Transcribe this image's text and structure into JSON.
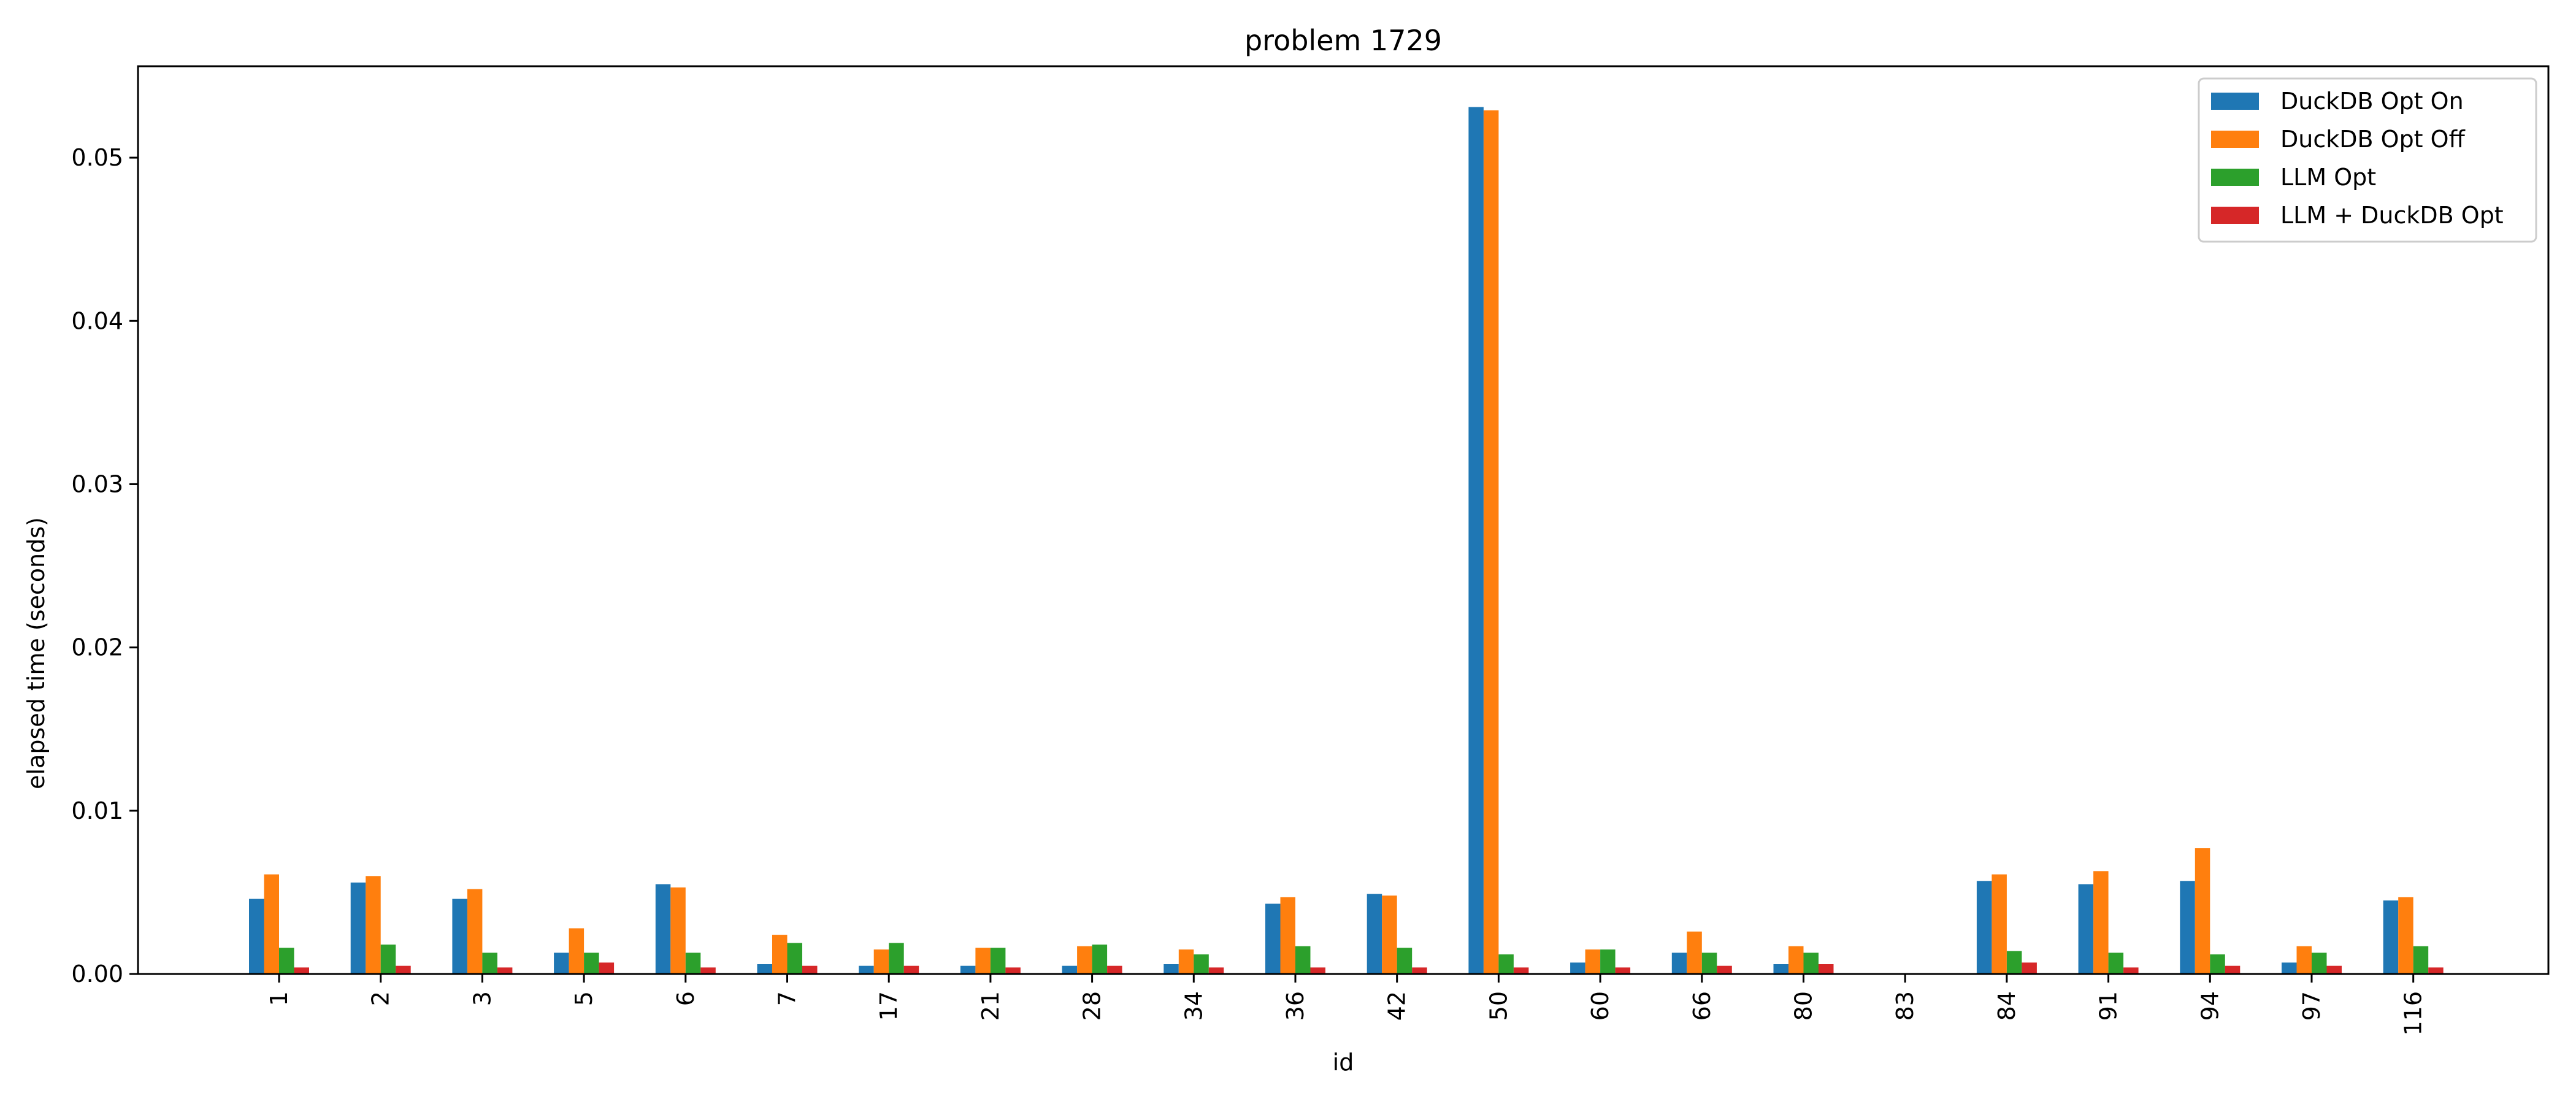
{
  "chart_data": {
    "type": "bar",
    "title": "problem 1729",
    "xlabel": "id",
    "ylabel": "elapsed time (seconds)",
    "ylim": [
      0,
      0.0556
    ],
    "yticks": [
      "0.00",
      "0.01",
      "0.02",
      "0.03",
      "0.04",
      "0.05"
    ],
    "grid": false,
    "legend_position": "top-right",
    "categories": [
      "1",
      "2",
      "3",
      "5",
      "6",
      "7",
      "17",
      "21",
      "28",
      "34",
      "36",
      "42",
      "50",
      "60",
      "66",
      "80",
      "83",
      "84",
      "91",
      "94",
      "97",
      "116"
    ],
    "series": [
      {
        "name": "DuckDB Opt On",
        "color": "#1f77b4",
        "values": [
          0.0046,
          0.0056,
          0.0046,
          0.0013,
          0.0055,
          0.0006,
          0.0005,
          0.0005,
          0.0005,
          0.0006,
          0.0043,
          0.0049,
          0.0531,
          0.0007,
          0.0013,
          0.0006,
          0.0,
          0.0057,
          0.0055,
          0.0057,
          0.0007,
          0.0045
        ]
      },
      {
        "name": "DuckDB Opt Off",
        "color": "#ff7f0e",
        "values": [
          0.0061,
          0.006,
          0.0052,
          0.0028,
          0.0053,
          0.0024,
          0.0015,
          0.0016,
          0.0017,
          0.0015,
          0.0047,
          0.0048,
          0.0529,
          0.0015,
          0.0026,
          0.0017,
          0.0,
          0.0061,
          0.0063,
          0.0077,
          0.0017,
          0.0047
        ]
      },
      {
        "name": "LLM Opt",
        "color": "#2ca02c",
        "values": [
          0.0016,
          0.0018,
          0.0013,
          0.0013,
          0.0013,
          0.0019,
          0.0019,
          0.0016,
          0.0018,
          0.0012,
          0.0017,
          0.0016,
          0.0012,
          0.0015,
          0.0013,
          0.0013,
          0.0,
          0.0014,
          0.0013,
          0.0012,
          0.0013,
          0.0017
        ]
      },
      {
        "name": "LLM + DuckDB Opt",
        "color": "#d62728",
        "values": [
          0.0004,
          0.0005,
          0.0004,
          0.0007,
          0.0004,
          0.0005,
          0.0005,
          0.0004,
          0.0005,
          0.0004,
          0.0004,
          0.0004,
          0.0004,
          0.0004,
          0.0005,
          0.0006,
          0.0,
          0.0007,
          0.0004,
          0.0005,
          0.0005,
          0.0004
        ]
      }
    ]
  }
}
